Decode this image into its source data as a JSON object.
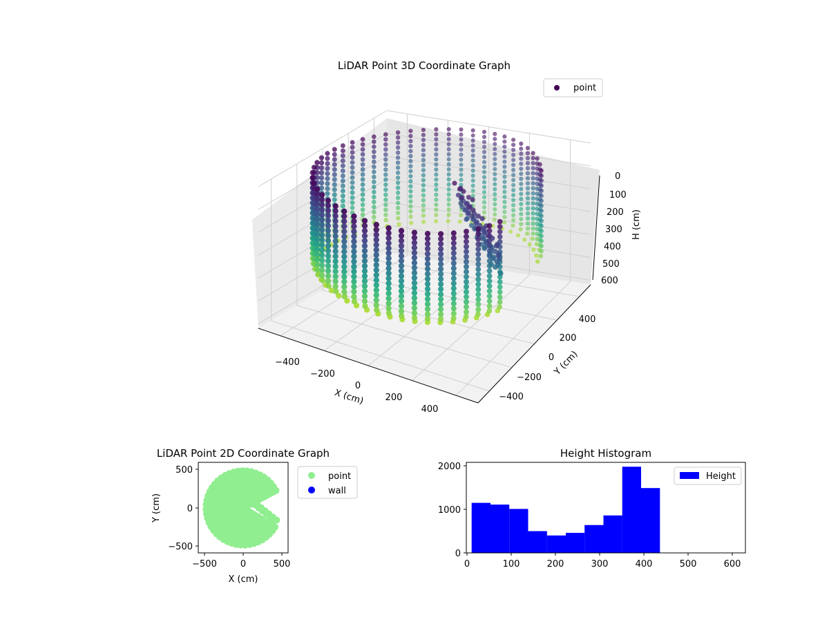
{
  "chart_data": [
    {
      "type": "scatter3d",
      "title": "LiDAR Point 3D Coordinate Graph",
      "xlabel": "X (cm)",
      "ylabel": "Y (cm)",
      "zlabel": "H (cm)",
      "xlim": [
        -500,
        500
      ],
      "ylim": [
        -500,
        500
      ],
      "zlim": [
        0,
        620
      ],
      "z_inverted": true,
      "x_ticks": [
        "−400",
        "−200",
        "0",
        "200",
        "400"
      ],
      "y_ticks": [
        "−400",
        "−200",
        "0",
        "200",
        "400"
      ],
      "z_ticks": [
        "0",
        "100",
        "200",
        "300",
        "400",
        "500",
        "600"
      ],
      "legend": [
        {
          "name": "point",
          "color": "#440154"
        }
      ],
      "legend_position": "upper-right",
      "colormap": "viridis",
      "series": [
        {
          "name": "point",
          "description_shape": "cylindrical wall of points, radius ~480 cm, height 0-420 cm, angular gap between ~-20 and ~+30 degrees, sparse arm at low height"
        }
      ]
    },
    {
      "type": "scatter",
      "title": "LiDAR Point 2D Coordinate Graph",
      "xlabel": "X (cm)",
      "ylabel": "Y (cm)",
      "x_ticks": [
        "−500",
        "0",
        "500"
      ],
      "y_ticks": [
        "−500",
        "0",
        "500"
      ],
      "xlim": [
        -580,
        580
      ],
      "ylim": [
        -580,
        580
      ],
      "legend_position": "outside-right",
      "series": [
        {
          "name": "point",
          "color": "#90ee90"
        },
        {
          "name": "wall",
          "color": "#0000ff"
        }
      ]
    },
    {
      "type": "bar",
      "title": "Height Histogram",
      "xlabel": "",
      "ylabel": "",
      "x_ticks": [
        "0",
        "100",
        "200",
        "300",
        "400",
        "500",
        "600"
      ],
      "y_ticks": [
        "0",
        "1000",
        "2000"
      ],
      "xlim": [
        0,
        630
      ],
      "ylim": [
        0,
        2080
      ],
      "bin_edges": [
        12,
        54.5,
        97,
        139.5,
        182,
        224.5,
        267,
        309.5,
        352,
        394.5,
        437
      ],
      "values": [
        1150,
        1110,
        1010,
        500,
        400,
        460,
        640,
        860,
        1980,
        1490
      ],
      "series": [
        {
          "name": "Height",
          "color": "#0000ff"
        }
      ],
      "legend_position": "upper-right"
    }
  ]
}
